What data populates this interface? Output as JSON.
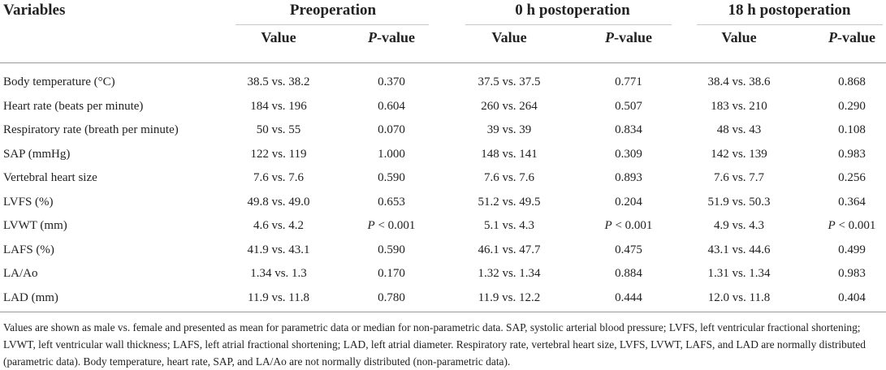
{
  "table": {
    "headers": {
      "variables": "Variables",
      "groups": [
        "Preoperation",
        "0 h postoperation",
        "18 h postoperation"
      ],
      "value_label": "Value",
      "p_label_italic": "P",
      "p_label_rest": "-value"
    },
    "rows": [
      {
        "label": "Body temperature (°C)",
        "pre_value": "38.5 vs. 38.2",
        "pre_p": "0.370",
        "post0_value": "37.5 vs. 37.5",
        "post0_p": "0.771",
        "post18_value": "38.4 vs. 38.6",
        "post18_p": "0.868"
      },
      {
        "label": "Heart rate (beats per minute)",
        "pre_value": "184 vs. 196",
        "pre_p": "0.604",
        "post0_value": "260 vs. 264",
        "post0_p": "0.507",
        "post18_value": "183 vs. 210",
        "post18_p": "0.290"
      },
      {
        "label": "Respiratory rate (breath per minute)",
        "pre_value": "50 vs. 55",
        "pre_p": "0.070",
        "post0_value": "39 vs. 39",
        "post0_p": "0.834",
        "post18_value": "48 vs. 43",
        "post18_p": "0.108"
      },
      {
        "label": "SAP (mmHg)",
        "pre_value": "122 vs. 119",
        "pre_p": "1.000",
        "post0_value": "148 vs. 141",
        "post0_p": "0.309",
        "post18_value": "142 vs. 139",
        "post18_p": "0.983"
      },
      {
        "label": "Vertebral heart size",
        "pre_value": "7.6 vs. 7.6",
        "pre_p": "0.590",
        "post0_value": "7.6 vs. 7.6",
        "post0_p": "0.893",
        "post18_value": "7.6 vs. 7.7",
        "post18_p": "0.256"
      },
      {
        "label": "LVFS (%)",
        "pre_value": "49.8 vs. 49.0",
        "pre_p": "0.653",
        "post0_value": "51.2 vs. 49.5",
        "post0_p": "0.204",
        "post18_value": "51.9 vs. 50.3",
        "post18_p": "0.364"
      },
      {
        "label": "LVWT (mm)",
        "pre_value": "4.6 vs. 4.2",
        "pre_p": "P < 0.001",
        "post0_value": "5.1 vs. 4.3",
        "post0_p": "P < 0.001",
        "post18_value": "4.9 vs. 4.3",
        "post18_p": "P < 0.001"
      },
      {
        "label": "LAFS (%)",
        "pre_value": "41.9 vs. 43.1",
        "pre_p": "0.590",
        "post0_value": "46.1 vs. 47.7",
        "post0_p": "0.475",
        "post18_value": "43.1 vs. 44.6",
        "post18_p": "0.499"
      },
      {
        "label": "LA/Ao",
        "pre_value": "1.34 vs. 1.3",
        "pre_p": "0.170",
        "post0_value": "1.32 vs. 1.34",
        "post0_p": "0.884",
        "post18_value": "1.31 vs. 1.34",
        "post18_p": "0.983"
      },
      {
        "label": "LAD (mm)",
        "pre_value": "11.9 vs. 11.8",
        "pre_p": "0.780",
        "post0_value": "11.9 vs. 12.2",
        "post0_p": "0.444",
        "post18_value": "12.0 vs. 11.8",
        "post18_p": "0.404"
      }
    ],
    "footnote": "Values are shown as male vs. female and presented as mean for parametric data or median for non-parametric data. SAP, systolic arterial blood pressure; LVFS, left ventricular fractional shortening; LVWT, left ventricular wall thickness; LAFS, left atrial fractional shortening; LAD, left atrial diameter. Respiratory rate, vertebral heart size, LVFS, LVWT, LAFS, and LAD are normally distributed (parametric data). Body temperature, heart rate, SAP, and LA/Ao are not normally distributed (non-parametric data)."
  }
}
